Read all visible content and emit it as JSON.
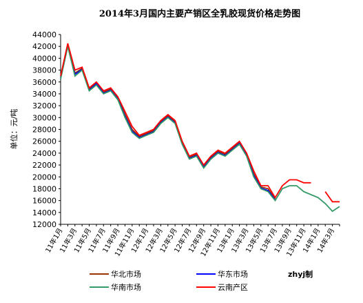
{
  "chart_data": {
    "type": "line",
    "title": "2014年3月国内主要产销区全乳胶现货价格走势图",
    "y_label": "单位：元/吨",
    "credit": "zhyj制",
    "categories": [
      "11年1月",
      null,
      "11年3月",
      null,
      "11年5月",
      null,
      "11年7月",
      null,
      "11年9月",
      null,
      "11年11月",
      null,
      "12年1月",
      null,
      "12年3月",
      null,
      "12年5月",
      null,
      "12年7月",
      null,
      "12年9月",
      null,
      "12年11月",
      null,
      "13年1月",
      null,
      "13年3月",
      null,
      "13年5月",
      null,
      "13年7月",
      null,
      "13年9月",
      null,
      "13年11月",
      null,
      "14年1月",
      null,
      "14年3月",
      null
    ],
    "series": [
      {
        "name": "华北市场",
        "color": "#993300",
        "values": [
          36800,
          42300,
          37500,
          38300,
          34800,
          35800,
          34300,
          34800,
          33300,
          30500,
          28000,
          26800,
          27300,
          27800,
          29300,
          30300,
          29300,
          25800,
          23300,
          23800,
          21800,
          23300,
          24300,
          23800,
          24800,
          25800,
          23800,
          20500,
          18300,
          18000,
          16300,
          null,
          null,
          null,
          null,
          null,
          null,
          null,
          null,
          null
        ]
      },
      {
        "name": "华东市场",
        "color": "#0000ff",
        "values": [
          36600,
          42100,
          37300,
          38100,
          34600,
          35700,
          34100,
          34600,
          33100,
          30200,
          27700,
          26600,
          27100,
          27600,
          29100,
          30100,
          29100,
          25600,
          23100,
          23600,
          21600,
          23100,
          24100,
          23600,
          24600,
          25600,
          23600,
          20200,
          18100,
          17700,
          16100,
          null,
          null,
          null,
          null,
          null,
          null,
          null,
          null,
          null
        ]
      },
      {
        "name": "华南市场",
        "color": "#339966",
        "values": [
          36500,
          42000,
          37000,
          38000,
          34500,
          35500,
          34000,
          34500,
          33000,
          30000,
          27500,
          26500,
          27000,
          27500,
          29000,
          30000,
          29000,
          25500,
          23000,
          23500,
          21500,
          23000,
          24000,
          23500,
          24500,
          25500,
          23500,
          20000,
          18000,
          17500,
          16000,
          18000,
          18500,
          18500,
          17500,
          17000,
          16500,
          15500,
          14200,
          15000
        ]
      },
      {
        "name": "云南产区",
        "color": "#ff0000",
        "values": [
          37000,
          42500,
          38000,
          38500,
          35000,
          36000,
          34500,
          35000,
          33500,
          31000,
          28500,
          27000,
          27500,
          28000,
          29500,
          30500,
          29500,
          26000,
          23500,
          24000,
          22000,
          23500,
          24500,
          24000,
          25000,
          26000,
          24000,
          21000,
          18500,
          18500,
          16500,
          18500,
          19500,
          19500,
          19000,
          19000,
          null,
          17500,
          15800,
          15800
        ]
      }
    ],
    "ylim": [
      12000,
      44000
    ],
    "yticks": [
      12000,
      14000,
      16000,
      18000,
      20000,
      22000,
      24000,
      26000,
      28000,
      30000,
      32000,
      34000,
      36000,
      38000,
      40000,
      42000,
      44000
    ],
    "grid": false
  }
}
